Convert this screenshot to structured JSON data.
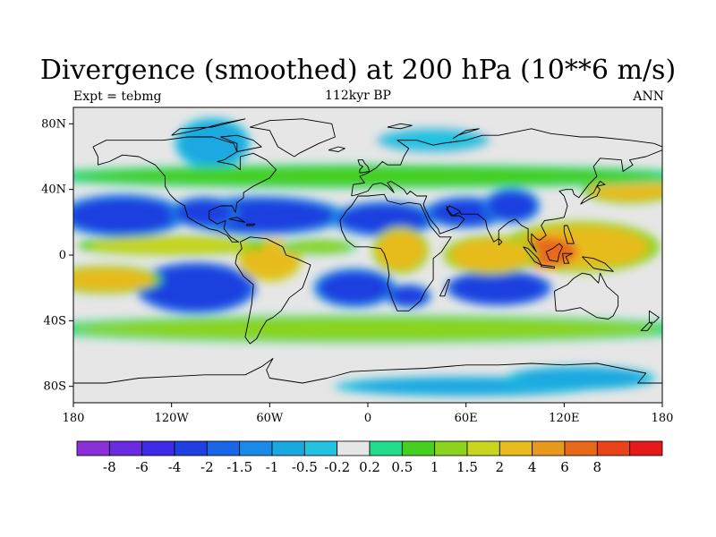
{
  "header": {
    "title": "Divergence (smoothed) at 200 hPa (10**6 m/s)",
    "left_label": "Expt = tebmg",
    "center_label": "112kyr BP",
    "right_label": "ANN"
  },
  "map": {
    "projection": "cylindrical equidistant",
    "lon_range": [
      -180,
      180
    ],
    "lat_range": [
      -90,
      90
    ],
    "x_ticks": [
      {
        "lon": -180,
        "label": "180"
      },
      {
        "lon": -120,
        "label": "120W"
      },
      {
        "lon": -60,
        "label": "60W"
      },
      {
        "lon": 0,
        "label": "0"
      },
      {
        "lon": 60,
        "label": "60E"
      },
      {
        "lon": 120,
        "label": "120E"
      },
      {
        "lon": 180,
        "label": "180"
      }
    ],
    "y_ticks": [
      {
        "lat": 80,
        "label": "80N"
      },
      {
        "lat": 40,
        "label": "40N"
      },
      {
        "lat": 0,
        "label": "0"
      },
      {
        "lat": -40,
        "label": "40S"
      },
      {
        "lat": -80,
        "label": "80S"
      }
    ],
    "field_regions": [
      {
        "name": "ne-pacific-low",
        "lon": -150,
        "lat": 24,
        "rlon": 34,
        "rlat": 11,
        "value": -2.5
      },
      {
        "name": "n-atlantic-low",
        "lon": -65,
        "lat": 24,
        "rlon": 45,
        "rlat": 10,
        "value": -2.5
      },
      {
        "name": "gulf-low",
        "lon": -100,
        "lat": 26,
        "rlon": 18,
        "rlat": 8,
        "value": -2.5
      },
      {
        "name": "sahara-low",
        "lon": 10,
        "lat": 22,
        "rlon": 28,
        "rlat": 9,
        "value": -3.0
      },
      {
        "name": "arabia-low",
        "lon": 60,
        "lat": 26,
        "rlon": 22,
        "rlat": 8,
        "value": -2.5
      },
      {
        "name": "himalaya-low",
        "lon": 88,
        "lat": 30,
        "rlon": 15,
        "rlat": 9,
        "value": -3.0
      },
      {
        "name": "se-pacific-low",
        "lon": -105,
        "lat": -20,
        "rlon": 32,
        "rlat": 13,
        "value": -3.5
      },
      {
        "name": "s-atlantic-low",
        "lon": -8,
        "lat": -20,
        "rlon": 22,
        "rlat": 10,
        "value": -3.0
      },
      {
        "name": "s-indian-low",
        "lon": 80,
        "lat": -20,
        "rlon": 28,
        "rlat": 9,
        "value": -3.5
      },
      {
        "name": "s-africa-low",
        "lon": 25,
        "lat": -25,
        "rlon": 12,
        "rlat": 6,
        "value": -2.5
      },
      {
        "name": "canada-low",
        "lon": -95,
        "lat": 68,
        "rlon": 20,
        "rlat": 13,
        "value": -1.0
      },
      {
        "name": "europe-low",
        "lon": 40,
        "lat": 70,
        "rlon": 35,
        "rlat": 8,
        "value": -0.4
      },
      {
        "name": "antarctic-low",
        "lon": 60,
        "lat": -80,
        "rlon": 70,
        "rlat": 5,
        "value": -1.0
      },
      {
        "name": "s-ocean-low",
        "lon": 130,
        "lat": -75,
        "rlon": 40,
        "rlat": 6,
        "value": -1.0
      },
      {
        "name": "nw-pacific-high",
        "lon": 160,
        "lat": 40,
        "rlon": 25,
        "rlat": 7,
        "value": 2.0
      },
      {
        "name": "w-pacific-high",
        "lon": 130,
        "lat": 5,
        "rlon": 42,
        "rlat": 13,
        "value": 3.0
      },
      {
        "name": "maritime-continent",
        "lon": 110,
        "lat": 2,
        "rlon": 18,
        "rlat": 9,
        "value": 6.0
      },
      {
        "name": "indian-ocean-high",
        "lon": 75,
        "lat": 0,
        "rlon": 25,
        "rlat": 10,
        "value": 2.5
      },
      {
        "name": "africa-high",
        "lon": 20,
        "lat": 3,
        "rlon": 15,
        "rlat": 12,
        "value": 2.5
      },
      {
        "name": "amazon-high",
        "lon": -60,
        "lat": -3,
        "rlon": 17,
        "rlat": 11,
        "value": 3.5
      },
      {
        "name": "e-pacific-itcz",
        "lon": -120,
        "lat": 6,
        "rlon": 50,
        "rlat": 5,
        "value": 1.5
      },
      {
        "name": "se-pacific-spcz",
        "lon": -160,
        "lat": -15,
        "rlon": 30,
        "rlat": 7,
        "value": 2.0
      },
      {
        "name": "s-midlat-band",
        "lon": 0,
        "lat": -45,
        "rlon": 180,
        "rlat": 7,
        "value": 1.0
      },
      {
        "name": "n-midlat-band",
        "lon": 0,
        "lat": 48,
        "rlon": 180,
        "rlat": 6,
        "value": 0.6
      },
      {
        "name": "atlantic-itcz",
        "lon": -30,
        "lat": 5,
        "rlon": 20,
        "rlat": 4,
        "value": 1.0
      }
    ]
  },
  "colorbar": {
    "colors": [
      "#8b30d9",
      "#6a2ae0",
      "#3f2ae8",
      "#1f3fe0",
      "#1a66e6",
      "#1a8ae8",
      "#1aa8e0",
      "#22c2e0",
      "#e6e6e6",
      "#22dc8a",
      "#45cf1e",
      "#8ad41e",
      "#c8d41e",
      "#e8bb1e",
      "#e89a1e",
      "#e8681a",
      "#e8421a",
      "#e61a1a"
    ],
    "labels": [
      "-8",
      "-6",
      "-4",
      "-2",
      "-1.5",
      "-1",
      "-0.5",
      "-0.2",
      "0.2",
      "0.5",
      "1",
      "1.5",
      "2",
      "4",
      "6",
      "8"
    ],
    "levels": [
      -8,
      -6,
      -4,
      -2,
      -1.5,
      -1,
      -0.5,
      -0.2,
      0.2,
      0.5,
      1,
      1.5,
      2,
      4,
      6,
      8
    ]
  }
}
